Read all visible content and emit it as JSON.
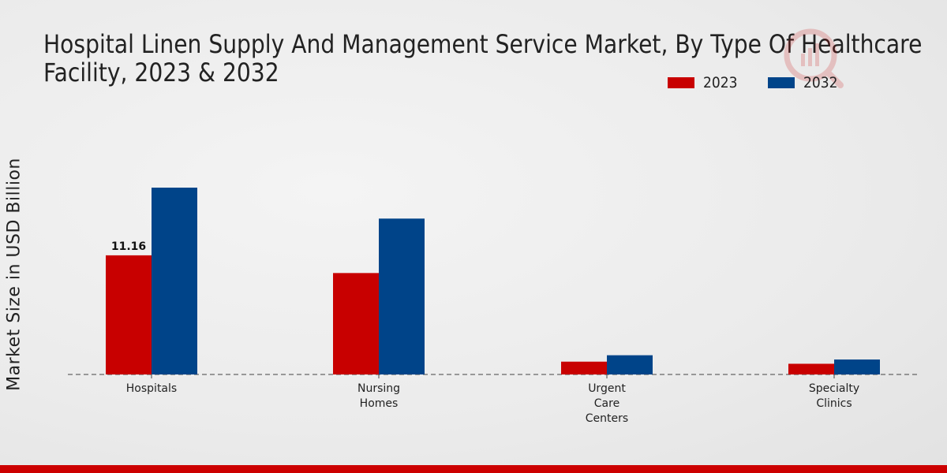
{
  "title_lines": [
    "Hospital Linen Supply And Management Service Market, By Type Of Healthcare",
    "Facility, 2023 & 2032"
  ],
  "colors": {
    "2023": "#c80000",
    "2032": "#004489",
    "bottom_bar": "#cc0000"
  },
  "chart_data": {
    "type": "bar",
    "title": "Hospital Linen Supply And Management Service Market, By Type Of Healthcare Facility, 2023 & 2032",
    "categories": [
      [
        "Hospitals"
      ],
      [
        "Nursing",
        "Homes"
      ],
      [
        "Urgent",
        "Care",
        "Centers"
      ],
      [
        "Specialty",
        "Clinics"
      ]
    ],
    "series": [
      {
        "name": "2023",
        "values": [
          11.16,
          9.5,
          1.2,
          1.0
        ]
      },
      {
        "name": "2032",
        "values": [
          17.5,
          14.6,
          1.8,
          1.4
        ]
      }
    ],
    "data_labels": [
      {
        "series": 0,
        "index": 0,
        "text": "11.16"
      }
    ],
    "ylabel": "Market Size in USD Billion",
    "xlabel": "",
    "ylim": [
      0,
      24
    ],
    "grid": false,
    "legend_position": "top-right"
  }
}
